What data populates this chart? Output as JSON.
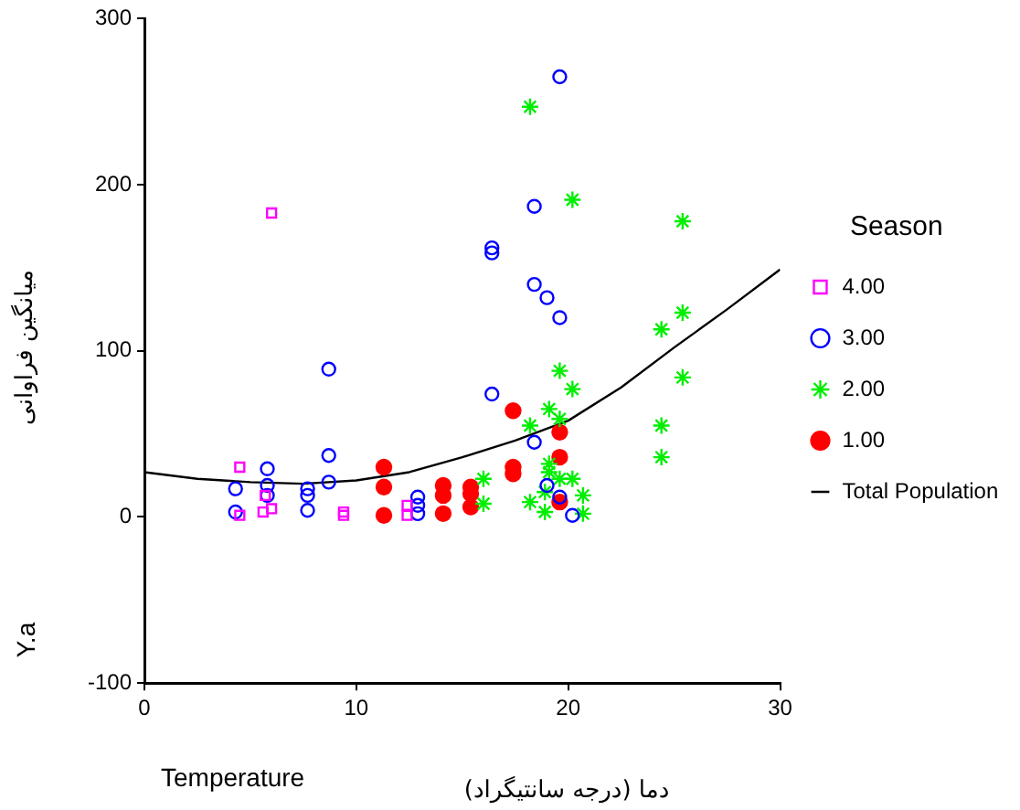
{
  "chart_data": {
    "type": "scatter",
    "xlabel": "دما (درجه سانتیگراد)",
    "ylabel": "میانگین فراوانی",
    "legend_title": "Season",
    "annotations": [
      "Y.a",
      "Temperature"
    ],
    "xlim": [
      0,
      30
    ],
    "xticks": [
      0,
      10,
      20,
      30
    ],
    "ylim": [
      -100,
      300
    ],
    "yticks": [
      -100,
      0,
      100,
      200,
      300
    ],
    "grid": false,
    "legend": "right",
    "series": [
      {
        "name": "4.00",
        "color": "#ff00ff",
        "marker": "square",
        "x": [
          4.5,
          6.0,
          5.7,
          5.6,
          6.0,
          4.5,
          9.4,
          9.4,
          12.4,
          12.4
        ],
        "values": [
          30,
          183,
          13,
          3,
          5,
          1,
          3,
          1,
          7,
          1
        ]
      },
      {
        "name": "3.00",
        "color": "#0000ff",
        "marker": "circle",
        "x": [
          8.7,
          4.3,
          4.3,
          5.8,
          5.8,
          5.8,
          7.7,
          7.7,
          7.7,
          8.7,
          8.7,
          12.9,
          12.9,
          12.9,
          19.6,
          18.4,
          16.4,
          16.4,
          18.4,
          19.0,
          19.6,
          16.4,
          18.4,
          19.0,
          19.6,
          20.2
        ],
        "values": [
          89,
          17,
          3,
          29,
          19,
          13,
          17,
          13,
          4,
          37,
          21,
          12,
          7,
          2,
          265,
          187,
          162,
          159,
          140,
          132,
          120,
          74,
          45,
          19,
          12,
          1
        ]
      },
      {
        "name": "2.00",
        "color": "#00ee00",
        "marker": "cross",
        "x": [
          18.2,
          20.2,
          25.4,
          25.4,
          24.4,
          25.4,
          24.4,
          24.4,
          19.6,
          20.2,
          19.1,
          19.6,
          18.2,
          16.0,
          16.0,
          18.2,
          18.9,
          19.1,
          19.1,
          19.6,
          20.2,
          20.7,
          20.7,
          18.9
        ],
        "values": [
          247,
          191,
          178,
          123,
          113,
          84,
          55,
          36,
          88,
          77,
          65,
          59,
          55,
          23,
          8,
          9,
          3,
          32,
          27,
          23,
          23,
          13,
          2,
          15
        ]
      },
      {
        "name": "1.00",
        "color": "#ff0000",
        "x": [
          11.3,
          11.3,
          11.3,
          14.1,
          14.1,
          14.1,
          15.4,
          15.4,
          15.4,
          17.4,
          17.4,
          17.4,
          19.6,
          19.6,
          19.6
        ],
        "values": [
          30,
          18,
          1,
          19,
          13,
          2,
          18,
          14,
          6,
          64,
          30,
          26,
          51,
          36,
          9
        ]
      },
      {
        "name": "Total Population",
        "type": "line",
        "color": "#000000",
        "x": [
          0,
          2.5,
          5,
          7.5,
          10,
          12.5,
          15,
          17.5,
          20,
          22.5,
          25,
          27.5,
          30
        ],
        "values": [
          27,
          23,
          21,
          20,
          22,
          27,
          36,
          46,
          58,
          78,
          102,
          125,
          149
        ]
      }
    ]
  }
}
